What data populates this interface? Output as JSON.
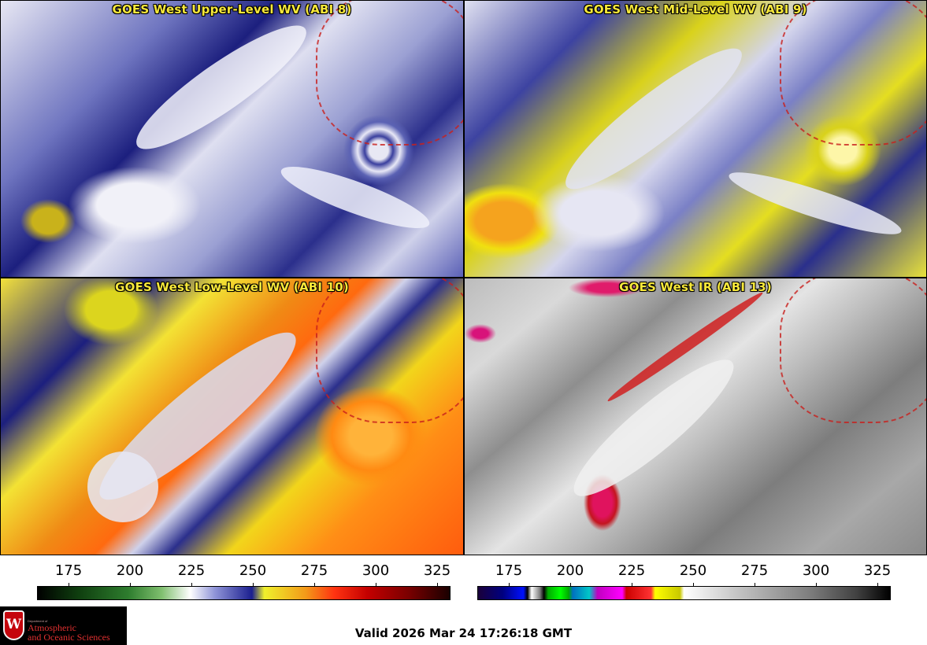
{
  "panels": [
    {
      "title": "GOES West Upper-Level WV (ABI 8)"
    },
    {
      "title": "GOES West Mid-Level WV (ABI 9)"
    },
    {
      "title": "GOES West Low-Level WV (ABI 10)"
    },
    {
      "title": "GOES West IR (ABI 13)"
    }
  ],
  "colorbars": {
    "wv": {
      "ticks": [
        "175",
        "200",
        "225",
        "250",
        "275",
        "300",
        "325"
      ]
    },
    "ir": {
      "ticks": [
        "175",
        "200",
        "225",
        "250",
        "275",
        "300",
        "325"
      ]
    }
  },
  "logo": {
    "dept_small": "Department of",
    "line1": "Atmospheric",
    "line2": "and Oceanic Sciences",
    "crest_letter": "W"
  },
  "valid_time": "Valid 2026 Mar 24 17:26:18 GMT",
  "colors": {
    "title_text": "#f7e83a",
    "logo_red": "#e03030",
    "crest_red": "#c5050c"
  }
}
